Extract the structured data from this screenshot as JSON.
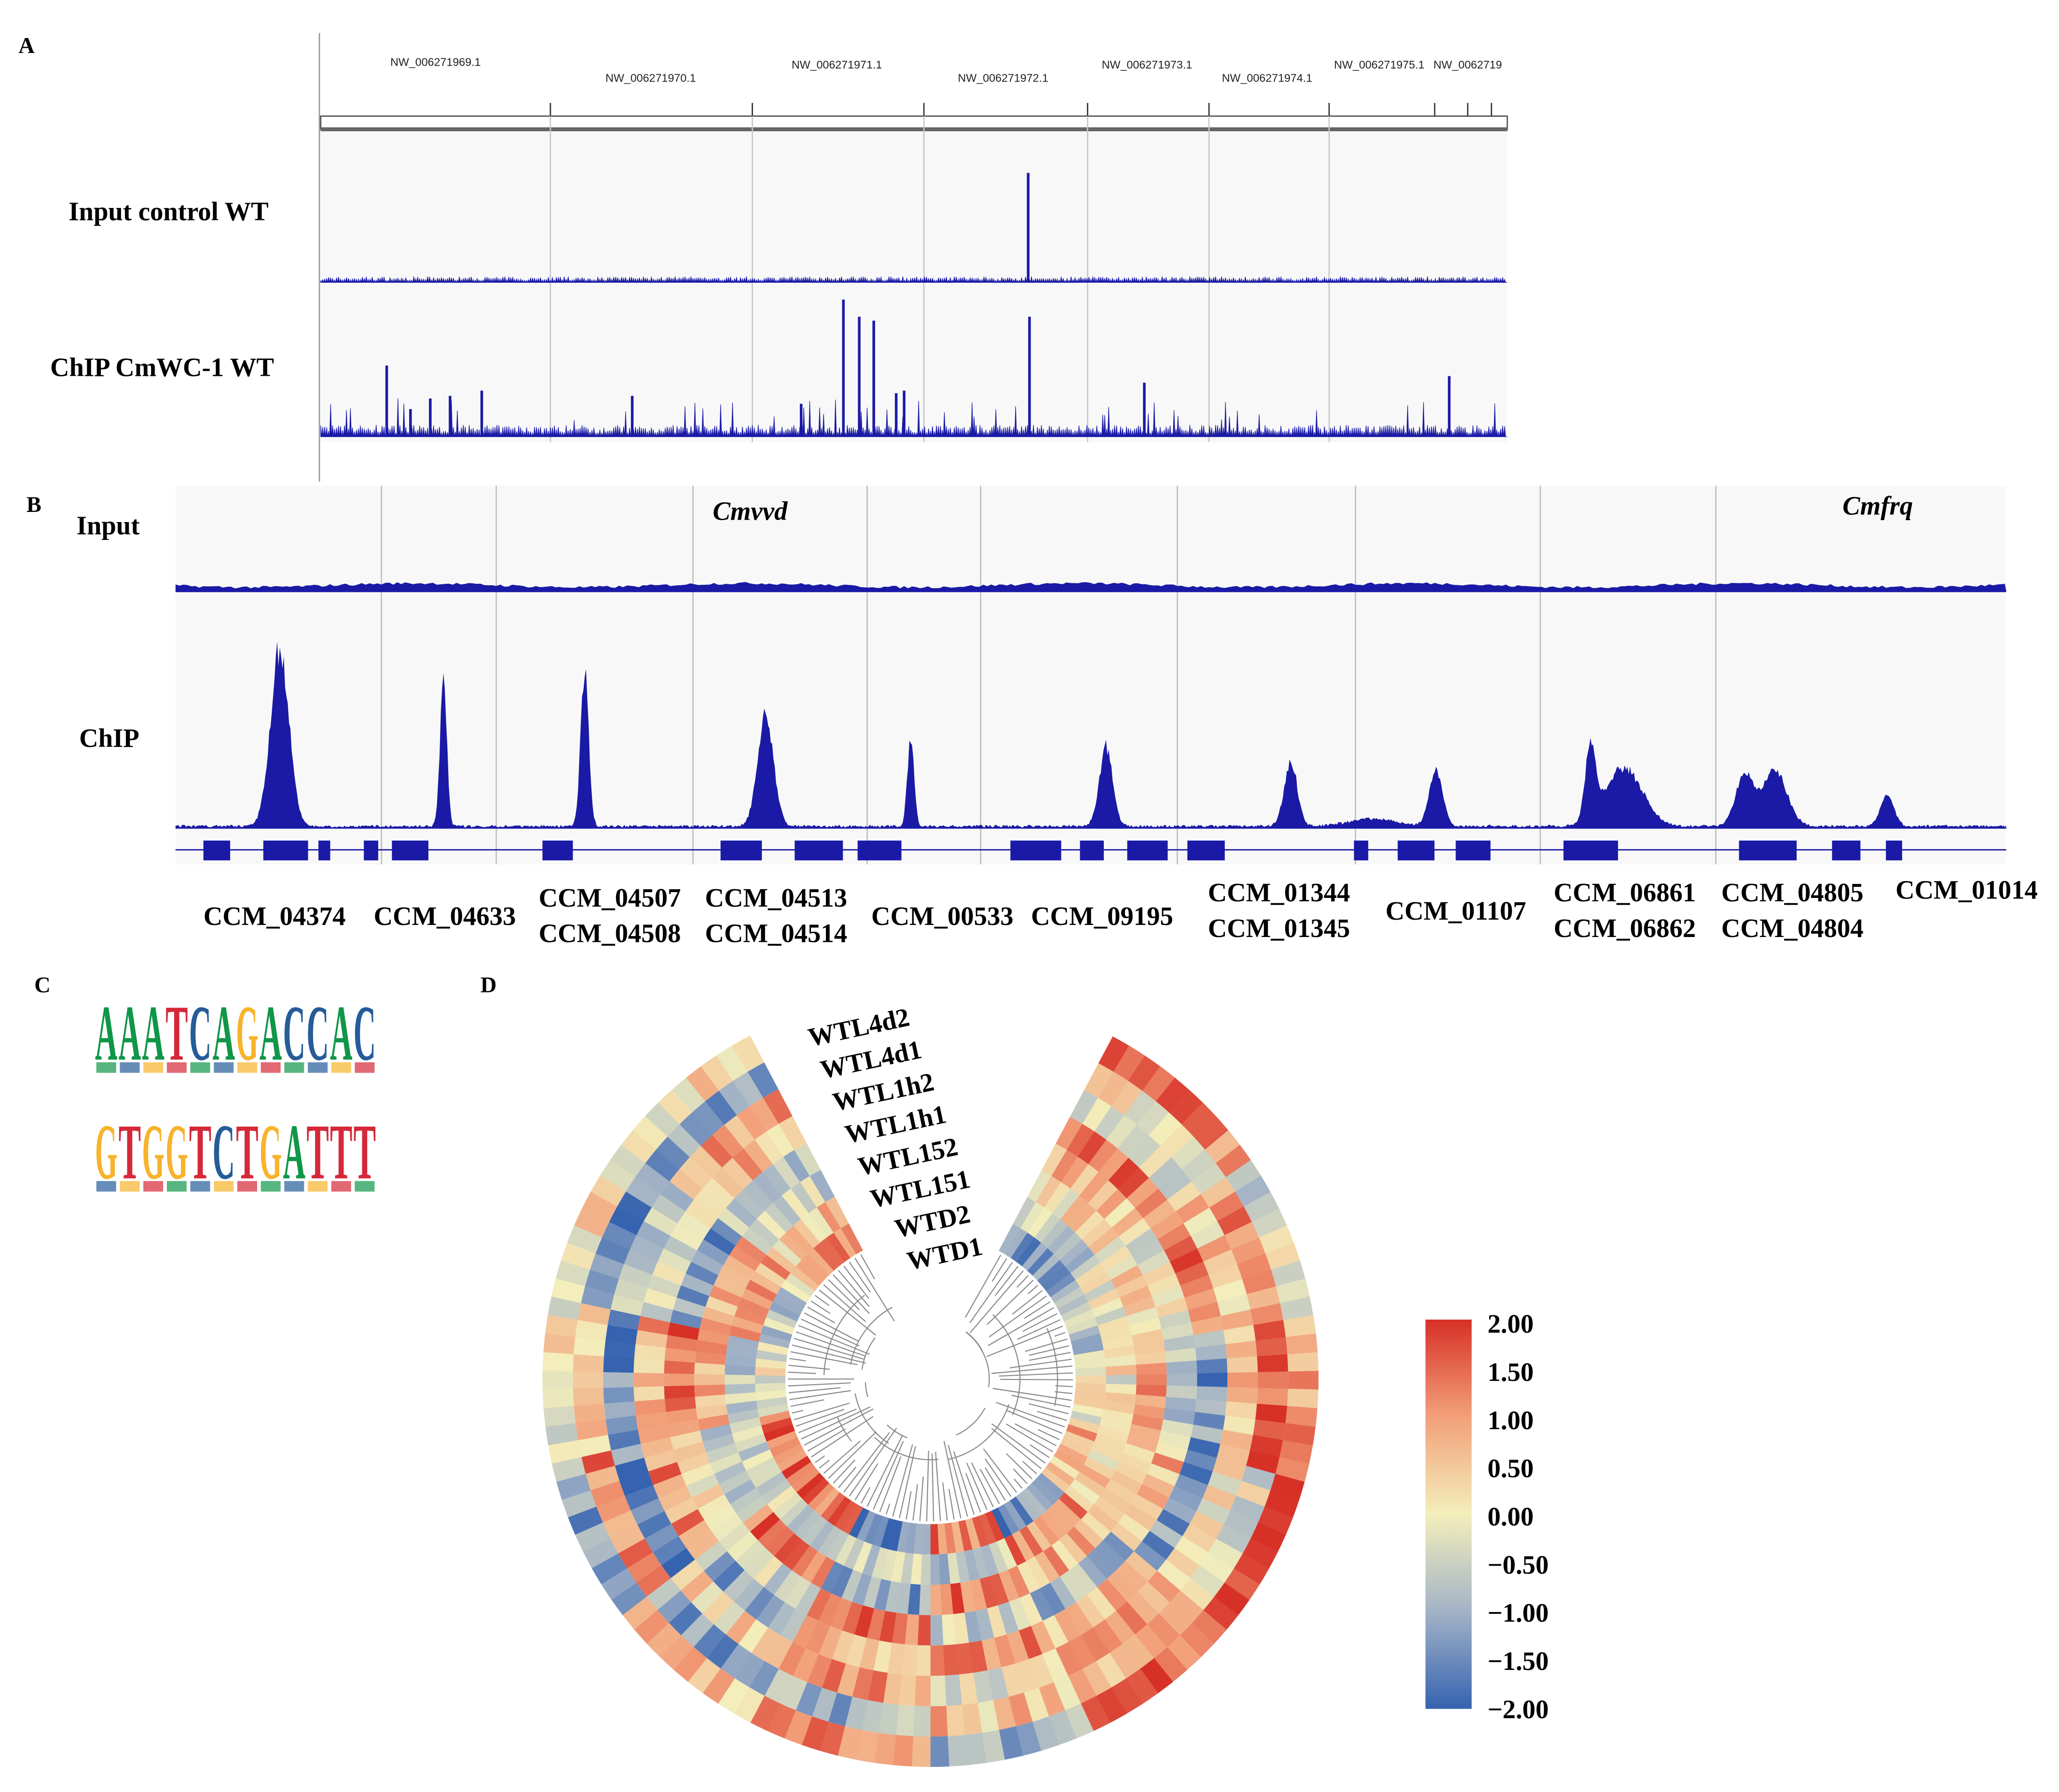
{
  "panels": {
    "a": "A",
    "b": "B",
    "c": "C",
    "d": "D"
  },
  "panel_a": {
    "tracks": [
      "Input control WT",
      "ChIP CmWC-1 WT"
    ],
    "scaffolds": [
      "NW_006271969.1",
      "NW_006271970.1",
      "NW_006271971.1",
      "NW_006271972.1",
      "NW_006271973.1",
      "NW_006271974.1",
      "NW_006271975.1",
      "NW_0062719"
    ]
  },
  "panel_b": {
    "tracks": [
      "Input",
      "ChIP"
    ],
    "loci": [
      "Cmvvd",
      "Cmfrq"
    ],
    "genes": [
      [
        "CCM_04374"
      ],
      [
        "CCM_04633"
      ],
      [
        "CCM_04507",
        "CCM_04508"
      ],
      [
        "CCM_04513",
        "CCM_04514"
      ],
      [
        "CCM_00533"
      ],
      [
        "CCM_09195"
      ],
      [
        "CCM_01344",
        "CCM_01345"
      ],
      [
        "CCM_01107"
      ],
      [
        "CCM_06861",
        "CCM_06862"
      ],
      [
        "CCM_04805",
        "CCM_04804"
      ],
      [
        "CCM_01014"
      ]
    ]
  },
  "panel_c": {
    "motifs": [
      {
        "letters": [
          "A",
          "A",
          "A",
          "T",
          "C",
          "A",
          "G",
          "A",
          "C",
          "C",
          "A",
          "C"
        ]
      },
      {
        "letters": [
          "G",
          "T",
          "G",
          "G",
          "T",
          "C",
          "T",
          "G",
          "A",
          "T",
          "T",
          "T"
        ]
      }
    ]
  },
  "panel_d": {
    "samples": [
      "WTL4d2",
      "WTL4d1",
      "WTL1h2",
      "WTL1h1",
      "WTL152",
      "WTL151",
      "WTD2",
      "WTD1"
    ],
    "colorbar": [
      "2.00",
      "1.50",
      "1.00",
      "0.50",
      "0.00",
      "−0.50",
      "−1.00",
      "−1.50",
      "−2.00"
    ]
  }
}
